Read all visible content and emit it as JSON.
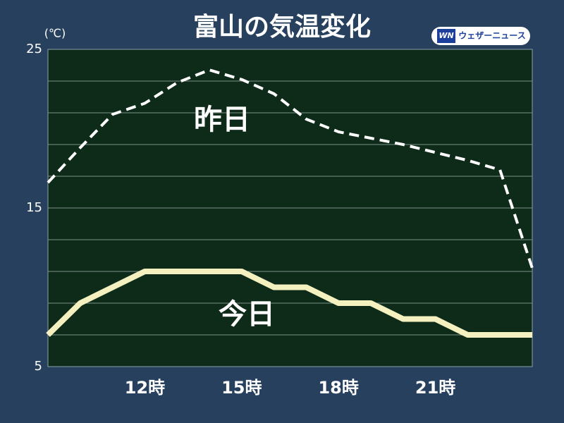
{
  "chart_data": {
    "type": "line",
    "title": "富山の気温変化",
    "y_unit": "(℃)",
    "source_logo": {
      "mark": "WN",
      "text": "ウェザーニュース"
    },
    "x": [
      9,
      10,
      11,
      12,
      13,
      14,
      15,
      16,
      17,
      18,
      19,
      20,
      21,
      22,
      23,
      24
    ],
    "xlim": [
      9,
      24
    ],
    "xticks": [
      {
        "value": 12,
        "label": "12時"
      },
      {
        "value": 15,
        "label": "15時"
      },
      {
        "value": 18,
        "label": "18時"
      },
      {
        "value": 21,
        "label": "21時"
      }
    ],
    "ylim": [
      5,
      25
    ],
    "yticks": [
      5,
      15,
      25
    ],
    "ygrid": [
      7,
      9,
      11,
      13,
      15,
      17,
      19,
      21,
      23
    ],
    "series": [
      {
        "name": "昨日",
        "color": "#ffffff",
        "dashed": true,
        "values": [
          16.6,
          18.8,
          20.9,
          21.6,
          22.9,
          23.7,
          23.1,
          22.2,
          20.6,
          19.8,
          19.4,
          19.0,
          18.5,
          18.0,
          17.4,
          11.2
        ]
      },
      {
        "name": "今日",
        "color": "#f5f0c0",
        "dashed": false,
        "values": [
          7,
          9,
          10,
          11,
          11,
          11,
          11,
          10,
          10,
          9,
          9,
          8,
          8,
          7,
          7,
          7
        ]
      }
    ]
  }
}
